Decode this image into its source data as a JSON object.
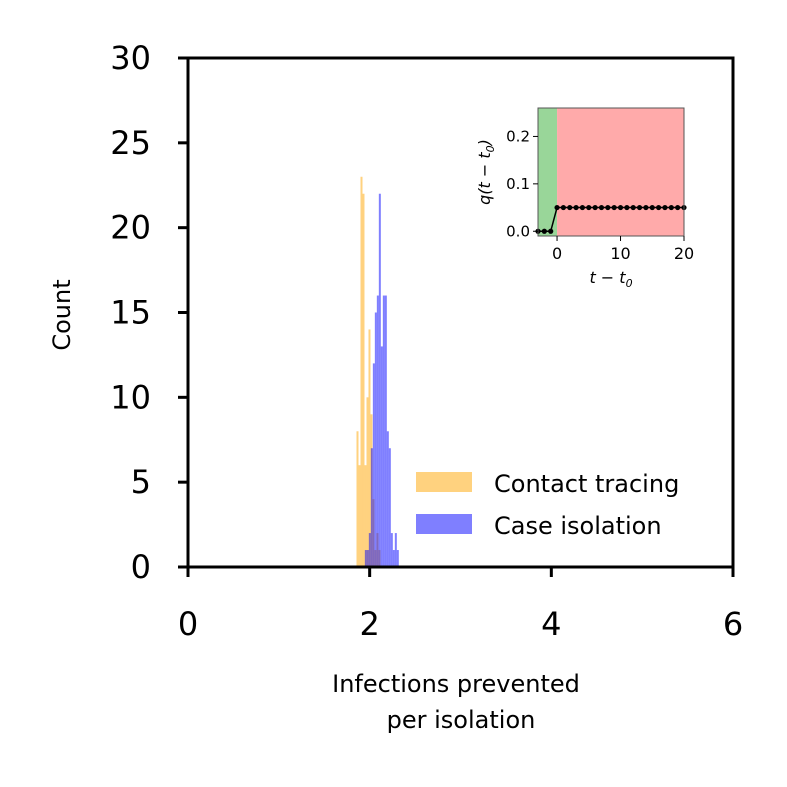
{
  "chart_data": [
    {
      "type": "histogram",
      "title": "",
      "xlabel_lines": [
        "Infections prevented",
        "per isolation"
      ],
      "ylabel": "Count",
      "xlim": [
        0,
        6
      ],
      "ylim": [
        0,
        30
      ],
      "xticks": [
        0,
        2,
        4,
        6
      ],
      "yticks": [
        0,
        5,
        10,
        15,
        20,
        25,
        30
      ],
      "grid": false,
      "legend_position": "lower-right",
      "series": [
        {
          "name": "Contact tracing",
          "color": "#ffa500",
          "opacity": 0.5,
          "bin_width": 0.022,
          "bins": [
            [
              1.855,
              8
            ],
            [
              1.877,
              6
            ],
            [
              1.899,
              23
            ],
            [
              1.921,
              22
            ],
            [
              1.943,
              6
            ],
            [
              1.965,
              10
            ],
            [
              1.987,
              14
            ],
            [
              2.009,
              9
            ],
            [
              2.031,
              4
            ],
            [
              2.053,
              1
            ],
            [
              2.075,
              2
            ],
            [
              2.097,
              1
            ]
          ]
        },
        {
          "name": "Case isolation",
          "color": "#0000ff",
          "opacity": 0.5,
          "bin_width": 0.022,
          "bins": [
            [
              1.947,
              1
            ],
            [
              1.969,
              1
            ],
            [
              1.991,
              2
            ],
            [
              2.013,
              7
            ],
            [
              2.035,
              12
            ],
            [
              2.057,
              15
            ],
            [
              2.079,
              16
            ],
            [
              2.101,
              22
            ],
            [
              2.123,
              13
            ],
            [
              2.145,
              16
            ],
            [
              2.167,
              16
            ],
            [
              2.189,
              8
            ],
            [
              2.211,
              7
            ],
            [
              2.233,
              2
            ],
            [
              2.255,
              1
            ],
            [
              2.277,
              2
            ],
            [
              2.299,
              1
            ]
          ]
        }
      ]
    },
    {
      "type": "line",
      "title": "",
      "xlabel": "t − t0",
      "ylabel": "q(t − t0)",
      "xlim": [
        -3,
        20
      ],
      "ylim": [
        -0.01,
        0.26
      ],
      "xticks": [
        0,
        10,
        20
      ],
      "yticks": [
        0.0,
        0.1,
        0.2
      ],
      "ytick_labels": [
        "0.0",
        "0.1",
        "0.2"
      ],
      "regions": [
        {
          "from": -3,
          "to": 0,
          "color": "#99d699"
        },
        {
          "from": 0,
          "to": 20,
          "color": "#ffaaaa"
        }
      ],
      "x": [
        -3,
        -2,
        -1,
        0,
        1,
        2,
        3,
        4,
        5,
        6,
        7,
        8,
        9,
        10,
        11,
        12,
        13,
        14,
        15,
        16,
        17,
        18,
        19,
        20
      ],
      "values": [
        0,
        0,
        0,
        0.05,
        0.05,
        0.05,
        0.05,
        0.05,
        0.05,
        0.05,
        0.05,
        0.05,
        0.05,
        0.05,
        0.05,
        0.05,
        0.05,
        0.05,
        0.05,
        0.05,
        0.05,
        0.05,
        0.05,
        0.05
      ]
    }
  ]
}
